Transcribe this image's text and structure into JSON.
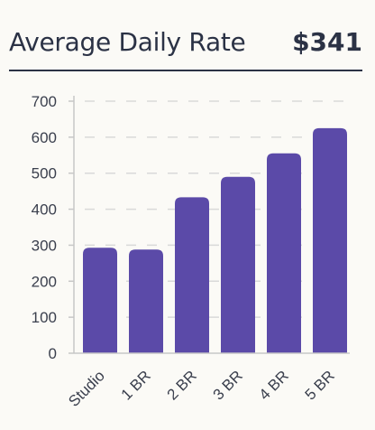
{
  "header": {
    "title": "Average Daily Rate",
    "value": "$341"
  },
  "colors": {
    "bar": "#5b4aa8",
    "grid": "#d9d9d9",
    "axis": "#c7c7c7",
    "text": "#2b3245"
  },
  "chart_data": {
    "type": "bar",
    "categories": [
      "Studio",
      "1 BR",
      "2 BR",
      "3 BR",
      "4 BR",
      "5 BR"
    ],
    "values": [
      293,
      288,
      433,
      490,
      555,
      625
    ],
    "yticks": [
      0,
      100,
      200,
      300,
      400,
      500,
      600,
      700
    ],
    "ylim": [
      0,
      700
    ],
    "grid": true,
    "title": "",
    "xlabel": "",
    "ylabel": ""
  }
}
